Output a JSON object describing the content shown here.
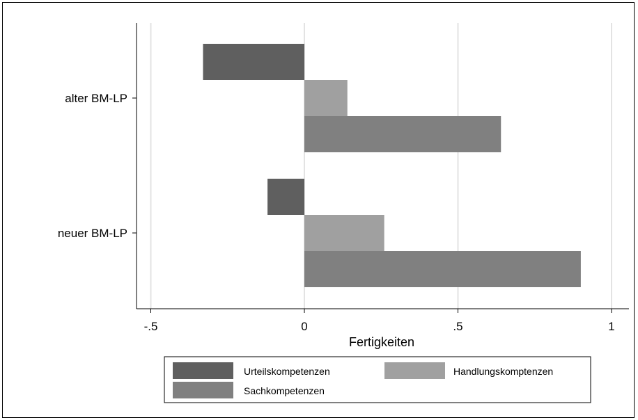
{
  "chart_data": {
    "type": "bar",
    "orientation": "horizontal",
    "categories": [
      "alter BM-LP",
      "neuer BM-LP"
    ],
    "series": [
      {
        "name": "Urteilskompetenzen",
        "values": [
          -0.33,
          -0.12
        ],
        "color": "#5f5f5f"
      },
      {
        "name": "Handlungskomptenzen",
        "values": [
          0.14,
          0.26
        ],
        "color": "#a0a0a0"
      },
      {
        "name": "Sachkompetenzen",
        "values": [
          0.64,
          0.9
        ],
        "color": "#808080"
      }
    ],
    "xlabel": "Fertigkeiten",
    "xticks": [
      -0.5,
      0,
      0.5,
      1
    ],
    "xtick_labels": [
      "-.5",
      "0",
      ".5",
      "1"
    ],
    "xlim": [
      -0.55,
      1.05
    ],
    "grid": true,
    "legend_position": "bottom"
  }
}
